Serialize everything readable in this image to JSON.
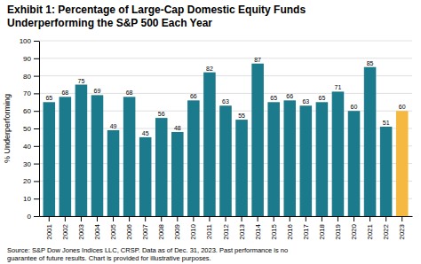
{
  "chart_data": {
    "type": "bar",
    "title": "Exhibit 1: Percentage of Large-Cap Domestic Equity Funds",
    "subtitle": "Underperforming the S&P 500 Each Year",
    "ylabel": "% Underperforming",
    "categories": [
      "2001",
      "2002",
      "2003",
      "2004",
      "2005",
      "2006",
      "2007",
      "2008",
      "2009",
      "2010",
      "2011",
      "2012",
      "2013",
      "2014",
      "2015",
      "2016",
      "2017",
      "2018",
      "2019",
      "2020",
      "2021",
      "2022",
      "2023"
    ],
    "values": [
      65,
      68,
      75,
      69,
      49,
      68,
      45,
      56,
      48,
      66,
      82,
      63,
      55,
      87,
      65,
      66,
      63,
      65,
      71,
      60,
      85,
      51,
      60
    ],
    "colors": [
      "#1b7a8c",
      "#1b7a8c",
      "#1b7a8c",
      "#1b7a8c",
      "#1b7a8c",
      "#1b7a8c",
      "#1b7a8c",
      "#1b7a8c",
      "#1b7a8c",
      "#1b7a8c",
      "#1b7a8c",
      "#1b7a8c",
      "#1b7a8c",
      "#1b7a8c",
      "#1b7a8c",
      "#1b7a8c",
      "#1b7a8c",
      "#1b7a8c",
      "#1b7a8c",
      "#1b7a8c",
      "#1b7a8c",
      "#1b7a8c",
      "#f5b942"
    ],
    "ylim": [
      0,
      100
    ],
    "yticks": [
      0,
      10,
      20,
      30,
      40,
      50,
      60,
      70,
      80,
      90,
      100
    ],
    "grid": true,
    "data_labels": true,
    "annotations": [
      "Source: S&P Dow Jones Indices LLC, CRSP.  Data as of Dec. 31, 2023.  Past performance is no",
      "guarantee of future results.  Chart is provided for illustrative purposes."
    ]
  }
}
